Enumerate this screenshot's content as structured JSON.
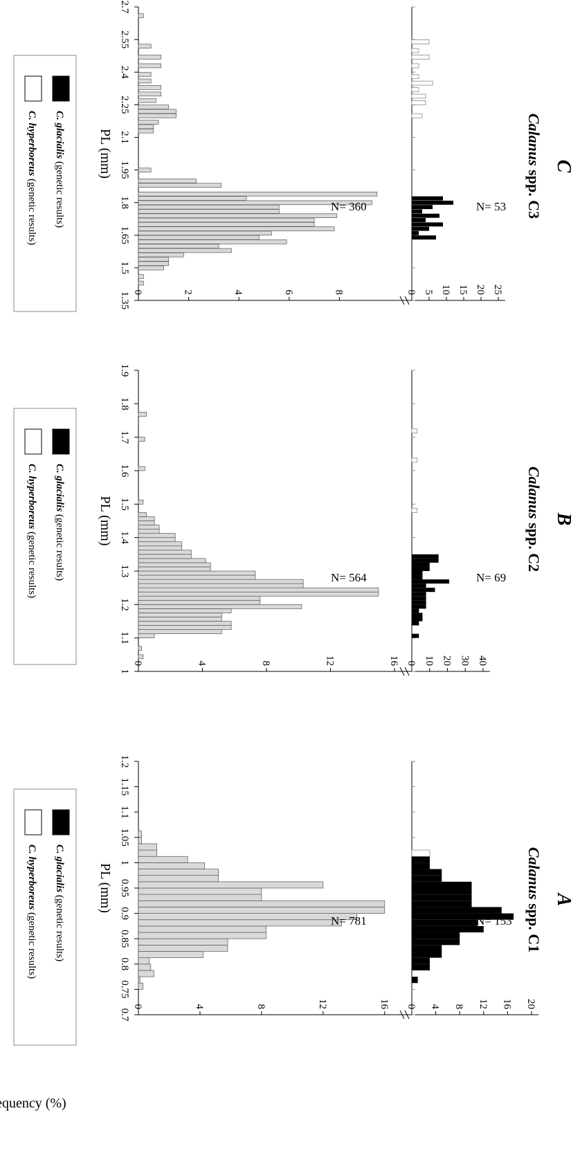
{
  "chart_data": [
    {
      "type": "bar",
      "letter": "A",
      "title_italic": "Calanus",
      "title_rest": " spp. C1",
      "xlabel": "PL (mm)",
      "ylabel": "Frequency (%)",
      "xlim": [
        0.7,
        1.2
      ],
      "x_ticks": [
        "0.7",
        "0.75",
        "0.8",
        "0.85",
        "0.9",
        "0.95",
        "1",
        "1.05",
        "1.1",
        "1.15",
        "1.2"
      ],
      "bin_width": 0.0125,
      "upper": {
        "name": "C. glacialis (genetic results)",
        "n_label": "N= 153",
        "ylim": [
          0,
          20
        ],
        "y_ticks": [
          "0",
          "4",
          "8",
          "12",
          "16",
          "20"
        ],
        "glacialis": {
          "x": [
            0.7625,
            0.775,
            0.7875,
            0.8,
            0.8125,
            0.825,
            0.8375,
            0.85,
            0.8625,
            0.875,
            0.8875,
            0.9,
            0.9125,
            0.925,
            0.9375,
            0.95,
            0.9625,
            0.975,
            0.9875,
            1.0,
            1.0125
          ],
          "values": [
            1,
            0,
            3,
            3,
            5,
            5,
            8,
            8,
            12,
            11,
            17,
            15,
            10,
            10,
            10,
            10,
            5,
            5,
            3,
            3,
            1
          ]
        },
        "hyperboreus": {
          "x": [
            1.0125
          ],
          "values": [
            3
          ]
        }
      },
      "lower": {
        "n_label": "N= 781",
        "ylim": [
          0,
          17
        ],
        "y_ticks": [
          "0",
          "4",
          "8",
          "12",
          "16"
        ],
        "x": [
          0.75,
          0.7625,
          0.775,
          0.7875,
          0.8,
          0.8125,
          0.825,
          0.8375,
          0.85,
          0.8625,
          0.875,
          0.8875,
          0.9,
          0.9125,
          0.925,
          0.9375,
          0.95,
          0.9625,
          0.975,
          0.9875,
          1.0,
          1.0125,
          1.025,
          1.0375,
          1.05
        ],
        "values": [
          0.3,
          0.1,
          1,
          0.8,
          0.7,
          4.2,
          5.8,
          5.8,
          8.3,
          8.3,
          13.2,
          14.2,
          16,
          16,
          8,
          8,
          12,
          5.2,
          5.2,
          4.3,
          3.2,
          1.2,
          1.2,
          0.2,
          0.2
        ]
      },
      "legend": [
        {
          "fill": "#000000",
          "species": "C. glacialis",
          "note": "(genetic results)"
        },
        {
          "fill": "#ffffff",
          "species": "C. hyperboreus",
          "note": "(genetic results)"
        }
      ]
    },
    {
      "type": "bar",
      "letter": "B",
      "title_italic": "Calanus",
      "title_rest": " spp. C2",
      "xlabel": "PL (mm)",
      "xlim": [
        1.0,
        1.9
      ],
      "x_ticks": [
        "1",
        "1.1",
        "1.2",
        "1.3",
        "1.4",
        "1.5",
        "1.6",
        "1.7",
        "1.8",
        "1.9"
      ],
      "bin_width": 0.0125,
      "upper": {
        "n_label": "N= 69",
        "ylim": [
          0,
          40
        ],
        "y_ticks": [
          "0",
          "10",
          "20",
          "30",
          "40"
        ],
        "glacialis": {
          "x": [
            1.1,
            1.1375,
            1.15,
            1.1625,
            1.175,
            1.1875,
            1.2,
            1.2125,
            1.225,
            1.2375,
            1.25,
            1.2625,
            1.275,
            1.2875,
            1.3,
            1.3125,
            1.325,
            1.3375
          ],
          "values": [
            4,
            4,
            6,
            6,
            4,
            8,
            8,
            8,
            8,
            13,
            8,
            21,
            6,
            6,
            10,
            10,
            15,
            15
          ]
        },
        "hyperboreus": {
          "x": [
            1.475,
            1.625,
            1.7125
          ],
          "values": [
            3,
            3,
            3
          ]
        }
      },
      "lower": {
        "n_label": "N= 564",
        "ylim": [
          0,
          16
        ],
        "y_ticks": [
          "0",
          "4",
          "8",
          "12",
          "16"
        ],
        "x": [
          1.0375,
          1.05,
          1.0625,
          1.075,
          1.0875,
          1.1,
          1.1125,
          1.125,
          1.1375,
          1.15,
          1.1625,
          1.175,
          1.1875,
          1.2,
          1.2125,
          1.225,
          1.2375,
          1.25,
          1.2625,
          1.275,
          1.2875,
          1.3,
          1.3125,
          1.325,
          1.3375,
          1.35,
          1.3625,
          1.375,
          1.3875,
          1.4,
          1.4125,
          1.425,
          1.4375,
          1.45,
          1.4625,
          1.5,
          1.6,
          1.6875,
          1.7625
        ],
        "values": [
          0.3,
          0,
          0.2,
          0,
          0,
          1,
          5.2,
          5.8,
          5.8,
          5.2,
          5.2,
          5.8,
          10.2,
          7.6,
          7.6,
          15,
          15,
          10.3,
          10.3,
          7.3,
          7.3,
          4.5,
          4.5,
          4.2,
          3.3,
          3.3,
          2.7,
          2.7,
          2.3,
          2.3,
          1.3,
          1.3,
          1,
          1,
          0.5,
          0.3,
          0.4,
          0.4,
          0.5
        ]
      },
      "legend": [
        {
          "fill": "#000000",
          "species": "C. glacialis",
          "note": "(genetic results)"
        },
        {
          "fill": "#ffffff",
          "species": "C. hyperboreus",
          "note": "(genetic results)"
        }
      ]
    },
    {
      "type": "bar",
      "letter": "C",
      "title_italic": "Calanus",
      "title_rest": " spp. C3",
      "xlabel": "PL (mm)",
      "xlim": [
        1.35,
        2.7
      ],
      "x_ticks": [
        "1.35",
        "1.5",
        "1.65",
        "1.8",
        "1.95",
        "2.1",
        "2.25",
        "2.4",
        "2.55",
        "2.7"
      ],
      "bin_width": 0.0188,
      "upper": {
        "n_label": "N= 53",
        "ylim": [
          0,
          25
        ],
        "y_ticks": [
          "0",
          "5",
          "10",
          "15",
          "20",
          "25"
        ],
        "glacialis": {
          "x": [
            1.63,
            1.65,
            1.67,
            1.69,
            1.71,
            1.73,
            1.75,
            1.77,
            1.79,
            1.81
          ],
          "values": [
            7,
            2,
            5,
            9,
            4,
            8,
            3,
            6,
            12,
            9
          ]
        },
        "hyperboreus": {
          "x": [
            2.19,
            2.25,
            2.28,
            2.31,
            2.34,
            2.37,
            2.42,
            2.46,
            2.49,
            2.53
          ],
          "values": [
            3,
            4,
            4,
            2,
            6,
            2,
            2,
            5,
            2,
            5
          ]
        }
      },
      "lower": {
        "n_label": "N= 360",
        "ylim": [
          0,
          10
        ],
        "y_ticks": [
          "0",
          "2",
          "4",
          "6",
          "8"
        ],
        "x": [
          1.42,
          1.45,
          1.49,
          1.51,
          1.53,
          1.55,
          1.57,
          1.59,
          1.61,
          1.63,
          1.65,
          1.67,
          1.69,
          1.71,
          1.73,
          1.75,
          1.77,
          1.79,
          1.81,
          1.83,
          1.87,
          1.89,
          1.94,
          2.12,
          2.14,
          2.16,
          2.19,
          2.21,
          2.23,
          2.26,
          2.29,
          2.32,
          2.35,
          2.38,
          2.42,
          2.46,
          2.51,
          2.65
        ],
        "values": [
          0.2,
          0.2,
          1,
          1.2,
          1.2,
          1.8,
          3.7,
          3.2,
          5.9,
          4.8,
          5.3,
          7.8,
          7.0,
          7.0,
          7.9,
          5.6,
          5.6,
          9.3,
          4.3,
          9.5,
          3.3,
          2.3,
          0.5,
          0.6,
          0.6,
          0.8,
          1.5,
          1.5,
          1.2,
          0.7,
          0.9,
          0.9,
          0.5,
          0.5,
          0.9,
          0.9,
          0.5,
          0.2
        ]
      },
      "legend": [
        {
          "fill": "#000000",
          "species": "C. glacialis",
          "note": "(genetic results)"
        },
        {
          "fill": "#ffffff",
          "species": "C. hyperboreus",
          "note": "(genetic results)"
        }
      ]
    }
  ]
}
